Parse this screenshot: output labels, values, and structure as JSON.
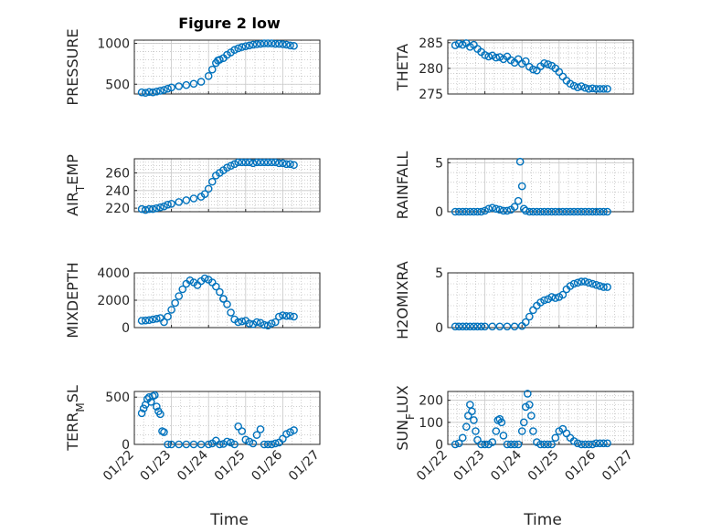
{
  "figure": {
    "title": "Figure 2 low",
    "xlabel": "Time",
    "marker_color": "#0072bd",
    "grid": "major and minor (dotted)"
  },
  "chart_data": [
    {
      "type": "scatter",
      "ylabel": "PRESSURE",
      "ylabel_sub": "",
      "ylabel_tail": "",
      "ylim": [
        380,
        1040
      ],
      "yticks": [
        500,
        1000
      ],
      "ytick_labels": [
        "500",
        "1000"
      ],
      "x_date_range": [
        "01/22",
        "01/27"
      ],
      "show_xticks": false,
      "x": [
        0.2,
        0.3,
        0.4,
        0.5,
        0.6,
        0.7,
        0.8,
        0.9,
        1.0,
        1.2,
        1.4,
        1.6,
        1.8,
        2.0,
        2.1,
        2.2,
        2.25,
        2.3,
        2.4,
        2.5,
        2.6,
        2.7,
        2.8,
        2.9,
        3.0,
        3.1,
        3.2,
        3.3,
        3.4,
        3.5,
        3.6,
        3.7,
        3.8,
        3.9,
        4.0,
        4.1,
        4.2,
        4.3
      ],
      "y": [
        400,
        395,
        405,
        400,
        410,
        420,
        430,
        445,
        460,
        475,
        490,
        505,
        530,
        600,
        680,
        760,
        790,
        800,
        820,
        860,
        890,
        920,
        940,
        955,
        965,
        975,
        985,
        990,
        995,
        1000,
        1000,
        1000,
        995,
        995,
        990,
        985,
        975,
        970
      ]
    },
    {
      "type": "scatter",
      "ylabel": "THETA",
      "ylabel_sub": "",
      "ylabel_tail": "",
      "ylim": [
        275,
        285.5
      ],
      "yticks": [
        275,
        280,
        285
      ],
      "ytick_labels": [
        "275",
        "280",
        "285"
      ],
      "x_date_range": [
        "01/22",
        "01/27"
      ],
      "show_xticks": false,
      "x": [
        0.2,
        0.3,
        0.4,
        0.5,
        0.6,
        0.7,
        0.8,
        0.9,
        1.0,
        1.1,
        1.2,
        1.3,
        1.4,
        1.5,
        1.6,
        1.7,
        1.8,
        1.9,
        2.0,
        2.1,
        2.2,
        2.3,
        2.4,
        2.5,
        2.6,
        2.7,
        2.8,
        2.9,
        3.0,
        3.1,
        3.2,
        3.3,
        3.4,
        3.5,
        3.6,
        3.7,
        3.8,
        3.9,
        4.0,
        4.1,
        4.2,
        4.3
      ],
      "y": [
        284.5,
        284.8,
        284.6,
        284.9,
        284.2,
        284.6,
        283.8,
        283.2,
        282.6,
        282.3,
        282.5,
        282.1,
        282.2,
        281.8,
        282.3,
        281.6,
        281.1,
        281.8,
        280.9,
        281.4,
        280.3,
        279.8,
        279.6,
        280.4,
        281.0,
        280.8,
        280.5,
        280.0,
        279.3,
        278.4,
        277.6,
        277.0,
        276.6,
        276.3,
        276.5,
        276.2,
        276.0,
        276.1,
        276.0,
        276.0,
        276.0,
        276.0
      ]
    },
    {
      "type": "scatter",
      "ylabel": "AIR",
      "ylabel_sub": "T",
      "ylabel_tail": "EMP",
      "ylim": [
        216,
        276
      ],
      "yticks": [
        220,
        240,
        260
      ],
      "ytick_labels": [
        "220",
        "240",
        "260"
      ],
      "x_date_range": [
        "01/22",
        "01/27"
      ],
      "show_xticks": false,
      "x": [
        0.2,
        0.3,
        0.4,
        0.5,
        0.6,
        0.7,
        0.8,
        0.9,
        1.0,
        1.2,
        1.4,
        1.6,
        1.8,
        1.9,
        2.0,
        2.1,
        2.2,
        2.3,
        2.4,
        2.5,
        2.6,
        2.7,
        2.8,
        2.9,
        3.0,
        3.1,
        3.2,
        3.3,
        3.4,
        3.5,
        3.6,
        3.7,
        3.8,
        3.9,
        4.0,
        4.1,
        4.2,
        4.3
      ],
      "y": [
        219,
        218,
        219,
        219,
        220,
        221,
        222,
        224,
        225,
        227,
        229,
        231,
        233,
        236,
        242,
        250,
        257,
        260,
        263,
        266,
        268,
        270,
        272,
        272,
        272,
        272,
        271,
        272,
        272,
        272,
        272,
        272,
        272,
        271,
        271,
        270,
        270,
        269
      ]
    },
    {
      "type": "scatter",
      "ylabel": "RAINFALL",
      "ylabel_sub": "",
      "ylabel_tail": "",
      "ylim": [
        0,
        5.4
      ],
      "yticks": [
        0,
        5
      ],
      "ytick_labels": [
        "0",
        "5"
      ],
      "x_date_range": [
        "01/22",
        "01/27"
      ],
      "show_xticks": false,
      "x": [
        0.2,
        0.3,
        0.4,
        0.5,
        0.6,
        0.7,
        0.8,
        0.9,
        1.0,
        1.1,
        1.2,
        1.3,
        1.4,
        1.5,
        1.6,
        1.7,
        1.8,
        1.9,
        1.95,
        2.0,
        2.05,
        2.1,
        2.2,
        2.3,
        2.4,
        2.5,
        2.6,
        2.7,
        2.8,
        2.9,
        3.0,
        3.1,
        3.2,
        3.3,
        3.4,
        3.5,
        3.6,
        3.7,
        3.8,
        3.9,
        4.0,
        4.1,
        4.2,
        4.3
      ],
      "y": [
        0,
        0,
        0,
        0,
        0,
        0,
        0,
        0,
        0.1,
        0.3,
        0.4,
        0.3,
        0.2,
        0.1,
        0.1,
        0.2,
        0.5,
        1.1,
        5.1,
        2.6,
        0.3,
        0.1,
        0,
        0,
        0,
        0,
        0,
        0,
        0,
        0,
        0,
        0,
        0,
        0,
        0,
        0,
        0,
        0,
        0,
        0,
        0,
        0,
        0,
        0
      ]
    },
    {
      "type": "scatter",
      "ylabel": "MIXDEPTH",
      "ylabel_sub": "",
      "ylabel_tail": "",
      "ylim": [
        0,
        4000
      ],
      "yticks": [
        0,
        2000,
        4000
      ],
      "ytick_labels": [
        "0",
        "2000",
        "4000"
      ],
      "x_date_range": [
        "01/22",
        "01/27"
      ],
      "show_xticks": false,
      "x": [
        0.2,
        0.3,
        0.4,
        0.5,
        0.6,
        0.7,
        0.8,
        0.9,
        1.0,
        1.1,
        1.2,
        1.3,
        1.4,
        1.5,
        1.6,
        1.7,
        1.8,
        1.9,
        2.0,
        2.1,
        2.2,
        2.3,
        2.4,
        2.5,
        2.6,
        2.7,
        2.8,
        2.9,
        3.0,
        3.1,
        3.2,
        3.3,
        3.4,
        3.5,
        3.6,
        3.7,
        3.8,
        3.9,
        4.0,
        4.1,
        4.2,
        4.3,
        2.4
      ],
      "y": [
        500,
        520,
        550,
        600,
        650,
        700,
        400,
        800,
        1300,
        1800,
        2300,
        2800,
        3200,
        3450,
        3300,
        3100,
        3400,
        3600,
        3500,
        3300,
        3000,
        2600,
        2100,
        1700,
        1100,
        600,
        400,
        450,
        500,
        300,
        250,
        400,
        350,
        200,
        150,
        300,
        400,
        800,
        900,
        850,
        850,
        800,
        2100
      ]
    },
    {
      "type": "scatter",
      "ylabel": "H2OMIXRA",
      "ylabel_sub": "",
      "ylabel_tail": "",
      "ylim": [
        0,
        5
      ],
      "yticks": [
        0,
        5
      ],
      "ytick_labels": [
        "0",
        "5"
      ],
      "x_date_range": [
        "01/22",
        "01/27"
      ],
      "show_xticks": false,
      "x": [
        0.2,
        0.3,
        0.4,
        0.5,
        0.6,
        0.7,
        0.8,
        0.9,
        1.0,
        1.2,
        1.4,
        1.6,
        1.8,
        2.0,
        2.1,
        2.2,
        2.3,
        2.4,
        2.5,
        2.6,
        2.7,
        2.8,
        2.9,
        3.0,
        3.1,
        3.2,
        3.3,
        3.4,
        3.5,
        3.6,
        3.7,
        3.8,
        3.9,
        4.0,
        4.1,
        4.2,
        4.3
      ],
      "y": [
        0.1,
        0.1,
        0.1,
        0.1,
        0.1,
        0.1,
        0.1,
        0.1,
        0.1,
        0.1,
        0.1,
        0.1,
        0.1,
        0.15,
        0.5,
        1.0,
        1.6,
        2.0,
        2.3,
        2.5,
        2.6,
        2.8,
        2.7,
        2.8,
        3.0,
        3.5,
        3.8,
        4.0,
        4.1,
        4.2,
        4.2,
        4.1,
        4.0,
        3.9,
        3.8,
        3.7,
        3.7
      ]
    },
    {
      "type": "scatter",
      "ylabel": "TERR",
      "ylabel_sub": "M",
      "ylabel_tail": "SL",
      "ylim": [
        0,
        560
      ],
      "yticks": [
        0,
        500
      ],
      "ytick_labels": [
        "0",
        "500"
      ],
      "x_date_range": [
        "01/22",
        "01/27"
      ],
      "x_tick_labels": [
        "01/22",
        "01/23",
        "01/24",
        "01/25",
        "01/26",
        "01/27"
      ],
      "show_xticks": true,
      "x": [
        0.2,
        0.25,
        0.3,
        0.35,
        0.4,
        0.45,
        0.5,
        0.55,
        0.6,
        0.65,
        0.7,
        0.75,
        0.8,
        0.9,
        1.0,
        1.2,
        1.4,
        1.6,
        1.8,
        2.0,
        2.1,
        2.2,
        2.3,
        2.4,
        2.5,
        2.6,
        2.7,
        2.8,
        2.9,
        3.0,
        3.1,
        3.2,
        3.3,
        3.4,
        3.5,
        3.6,
        3.7,
        3.8,
        3.9,
        4.0,
        4.1,
        4.2,
        4.3
      ],
      "y": [
        330,
        380,
        420,
        480,
        500,
        450,
        510,
        520,
        400,
        350,
        320,
        140,
        130,
        0,
        0,
        0,
        0,
        0,
        0,
        0,
        10,
        40,
        0,
        5,
        30,
        20,
        0,
        190,
        140,
        50,
        30,
        10,
        100,
        160,
        0,
        0,
        0,
        10,
        20,
        60,
        110,
        130,
        150
      ]
    },
    {
      "type": "scatter",
      "ylabel": "SUN",
      "ylabel_sub": "F",
      "ylabel_tail": "LUX",
      "ylim": [
        0,
        240
      ],
      "yticks": [
        0,
        100,
        200
      ],
      "ytick_labels": [
        "0",
        "100",
        "200"
      ],
      "x_date_range": [
        "01/22",
        "01/27"
      ],
      "x_tick_labels": [
        "01/22",
        "01/23",
        "01/24",
        "01/25",
        "01/26",
        "01/27"
      ],
      "show_xticks": true,
      "x": [
        0.2,
        0.3,
        0.4,
        0.5,
        0.55,
        0.6,
        0.65,
        0.7,
        0.75,
        0.8,
        0.9,
        1.0,
        1.1,
        1.2,
        1.3,
        1.35,
        1.4,
        1.45,
        1.5,
        1.6,
        1.7,
        1.8,
        1.9,
        2.0,
        2.05,
        2.1,
        2.15,
        2.2,
        2.25,
        2.3,
        2.4,
        2.5,
        2.6,
        2.7,
        2.8,
        2.9,
        3.0,
        3.1,
        3.2,
        3.3,
        3.4,
        3.5,
        3.6,
        3.7,
        3.8,
        3.9,
        4.0,
        4.1,
        4.2,
        4.3
      ],
      "y": [
        0,
        5,
        30,
        80,
        130,
        180,
        150,
        110,
        60,
        20,
        0,
        0,
        0,
        10,
        60,
        110,
        115,
        100,
        40,
        0,
        0,
        0,
        0,
        60,
        100,
        170,
        230,
        180,
        130,
        60,
        10,
        0,
        0,
        0,
        0,
        30,
        60,
        70,
        50,
        30,
        15,
        5,
        0,
        0,
        0,
        0,
        5,
        5,
        5,
        5
      ]
    }
  ]
}
